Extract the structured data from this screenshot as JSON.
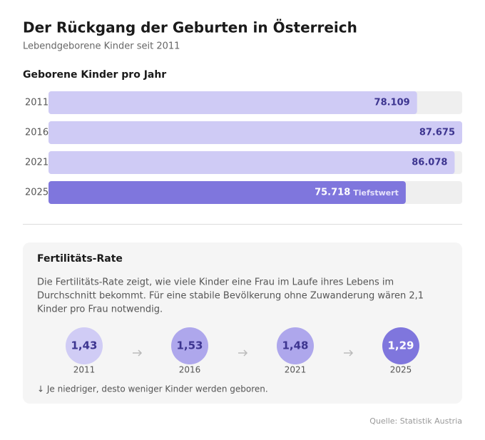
{
  "header": {
    "title": "Der Rückgang der Geburten in Österreich",
    "subtitle": "Lebendgeborene Kinder seit 2011"
  },
  "chart_data": {
    "type": "bar",
    "orientation": "horizontal",
    "title": "Geborene Kinder pro Jahr",
    "categories": [
      "2011",
      "2016",
      "2021",
      "2025"
    ],
    "values": [
      78109,
      87675,
      86078,
      75718
    ],
    "value_labels": [
      "78.109",
      "87.675",
      "86.078",
      "75.718"
    ],
    "colors": [
      "#cfcbf5",
      "#cfcbf5",
      "#cfcbf5",
      "#7f76dd"
    ],
    "annotation": {
      "index": 3,
      "text": "Tiefstwert"
    },
    "xlim": [
      0,
      87675
    ]
  },
  "fertility": {
    "title": "Fertilitäts-Rate",
    "description": [
      "Die Fertilitäts-Rate zeigt, wie viele Kinder eine Frau im Laufe ihres Lebens im",
      "Durchschnitt bekommt. Für eine stabile Bevölkerung ohne Zuwanderung wären 2,1",
      "Kinder pro Frau notwendig."
    ],
    "categories": [
      "2011",
      "2016",
      "2021",
      "2025"
    ],
    "values": [
      1.43,
      1.53,
      1.48,
      1.29
    ],
    "value_labels": [
      "1,43",
      "1,53",
      "1,48",
      "1,29"
    ],
    "colors": [
      "#d0ccf5",
      "#aea7ec",
      "#aea7ec",
      "#7f76dd"
    ],
    "note": "↓ Je niedriger, desto weniger Kinder werden geboren."
  },
  "source": "Quelle: Statistik Austria"
}
